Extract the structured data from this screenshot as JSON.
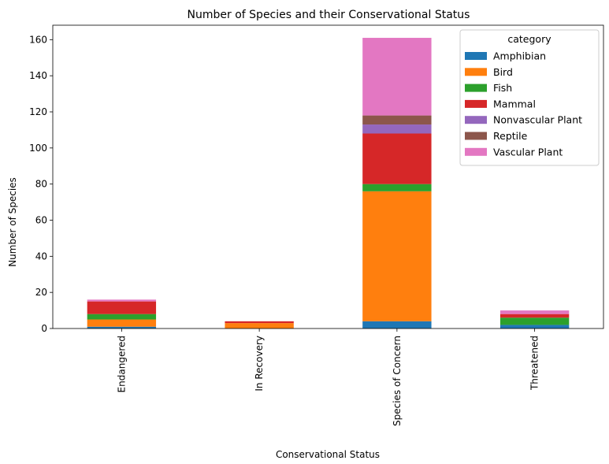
{
  "chart_data": {
    "type": "bar",
    "stacked": true,
    "title": "Number of Species and their Conservational Status",
    "xlabel": "Conservational Status",
    "ylabel": "Number of Species",
    "ylim": [
      0,
      168
    ],
    "yticks": [
      0,
      20,
      40,
      60,
      80,
      100,
      120,
      140,
      160
    ],
    "categories": [
      "Endangered",
      "In Recovery",
      "Species of Concern",
      "Threatened"
    ],
    "legend": {
      "title": "category",
      "placement": "top-right"
    },
    "series": [
      {
        "name": "Amphibian",
        "color": "#1f77b4",
        "values": [
          1,
          0,
          4,
          2
        ]
      },
      {
        "name": "Bird",
        "color": "#ff7f0e",
        "values": [
          4,
          3,
          72,
          0
        ]
      },
      {
        "name": "Fish",
        "color": "#2ca02c",
        "values": [
          3,
          0,
          4,
          4
        ]
      },
      {
        "name": "Mammal",
        "color": "#d62728",
        "values": [
          7,
          1,
          28,
          2
        ]
      },
      {
        "name": "Nonvascular Plant",
        "color": "#9467bd",
        "values": [
          0,
          0,
          5,
          0
        ]
      },
      {
        "name": "Reptile",
        "color": "#8c564b",
        "values": [
          0,
          0,
          5,
          0
        ]
      },
      {
        "name": "Vascular Plant",
        "color": "#e377c2",
        "values": [
          1,
          0,
          43,
          2
        ]
      }
    ]
  }
}
